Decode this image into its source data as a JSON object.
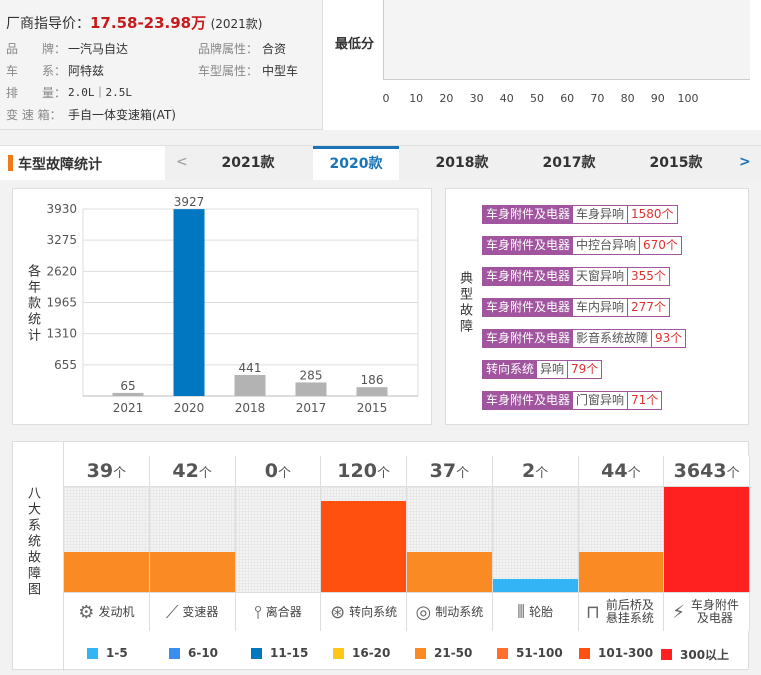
{
  "info": {
    "price_label": "厂商指导价：",
    "price_value": "17.58-23.98万",
    "price_year": "(2021款)",
    "fields": [
      {
        "label": "品　　牌：",
        "value": "一汽马自达"
      },
      {
        "label": "车　　系：",
        "value": "阿特兹"
      },
      {
        "label": "排　　量：",
        "value": "2.0L｜2.5L"
      },
      {
        "label": "变 速 箱：",
        "value": "手自一体变速箱(AT)"
      },
      {
        "label": "品牌属性：",
        "value": "合资"
      },
      {
        "label": "车型属性：",
        "value": "中型车"
      }
    ]
  },
  "score": {
    "label": "最低分",
    "value": "0",
    "ticks": [
      "0",
      "10",
      "20",
      "30",
      "40",
      "50",
      "60",
      "70",
      "80",
      "90",
      "100"
    ]
  },
  "tabs": {
    "title": "车型故障统计",
    "prev": "<",
    "next": ">",
    "items": [
      "2021款",
      "2020款",
      "2018款",
      "2017款",
      "2015款"
    ],
    "active": "2020款"
  },
  "chart_data": {
    "type": "bar",
    "ylabel": "各年款统计",
    "categories": [
      "2021",
      "2020",
      "2018",
      "2017",
      "2015"
    ],
    "values": [
      65,
      3927,
      441,
      285,
      186
    ],
    "yticks": [
      "655",
      "1310",
      "1965",
      "2620",
      "3275",
      "3930"
    ],
    "ylim": [
      0,
      3930
    ],
    "highlight": "2020",
    "colors": {
      "highlight": "#0077c0",
      "normal": "#b3b3b3"
    },
    "grid": true
  },
  "typical": {
    "label": "典型故障",
    "items": [
      {
        "cat": "车身附件及电器",
        "sub": "车身异响",
        "count": "1580个"
      },
      {
        "cat": "车身附件及电器",
        "sub": "中控台异响",
        "count": "670个"
      },
      {
        "cat": "车身附件及电器",
        "sub": "天窗异响",
        "count": "355个"
      },
      {
        "cat": "车身附件及电器",
        "sub": "车内异响",
        "count": "277个"
      },
      {
        "cat": "车身附件及电器",
        "sub": "影音系统故障",
        "count": "93个"
      },
      {
        "cat": "转向系统",
        "sub": "异响",
        "count": "79个"
      },
      {
        "cat": "车身附件及电器",
        "sub": "门窗异响",
        "count": "71个"
      }
    ]
  },
  "systems": {
    "label": "八大系统故障图",
    "unit": "个",
    "items": [
      {
        "count": "39",
        "name": "发动机",
        "icon": "engine-icon",
        "level": 0.38,
        "color": "#f98a24"
      },
      {
        "count": "42",
        "name": "变速器",
        "icon": "gear-shift-icon",
        "level": 0.38,
        "color": "#f98a24"
      },
      {
        "count": "0",
        "name": "离合器",
        "icon": "clutch-pedal-icon",
        "level": 0,
        "color": "#f4f4f4"
      },
      {
        "count": "120",
        "name": "转向系统",
        "icon": "steering-wheel-icon",
        "level": 0.87,
        "color": "#ff5010"
      },
      {
        "count": "37",
        "name": "制动系统",
        "icon": "brake-disc-icon",
        "level": 0.38,
        "color": "#f98a24"
      },
      {
        "count": "2",
        "name": "轮胎",
        "icon": "tire-icon",
        "level": 0.12,
        "color": "#33b5f5"
      },
      {
        "count": "44",
        "name": "前后桥及悬挂系统",
        "icon": "axle-icon",
        "level": 0.38,
        "color": "#f98a24"
      },
      {
        "count": "3643",
        "name": "车身附件及电器",
        "icon": "battery-icon",
        "level": 1,
        "color": "#ff2020"
      }
    ],
    "legend": [
      {
        "label": "1-5",
        "color": "#33b5f5"
      },
      {
        "label": "6-10",
        "color": "#3a8ef0"
      },
      {
        "label": "11-15",
        "color": "#0077c0"
      },
      {
        "label": "16-20",
        "color": "#ffc61a"
      },
      {
        "label": "21-50",
        "color": "#f98a24"
      },
      {
        "label": "51-100",
        "color": "#ff6e2a"
      },
      {
        "label": "101-300",
        "color": "#ff5010"
      },
      {
        "label": "300以上",
        "color": "#ff2020"
      }
    ]
  }
}
